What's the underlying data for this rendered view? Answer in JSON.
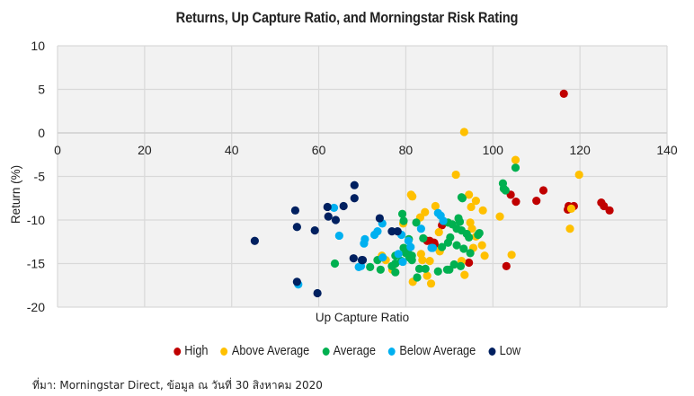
{
  "chart_data": {
    "type": "scatter",
    "title": "Returns, Up Capture Ratio, and Morningstar Risk Rating",
    "xlabel": "Up Capture Ratio",
    "ylabel": "Return (%)",
    "xlim": [
      0,
      140
    ],
    "ylim": [
      -20,
      10
    ],
    "xticks": [
      0,
      20,
      40,
      60,
      80,
      100,
      120,
      140
    ],
    "yticks": [
      10,
      5,
      0,
      -5,
      -10,
      -15,
      -20
    ],
    "grid": true,
    "legend_position": "bottom",
    "series": [
      {
        "name": "High",
        "color": "#c00000",
        "points": [
          [
            116.3,
            4.5
          ],
          [
            104.1,
            -7.1
          ],
          [
            105.3,
            -7.9
          ],
          [
            110.0,
            -7.8
          ],
          [
            111.6,
            -6.6
          ],
          [
            117.4,
            -8.4
          ],
          [
            118.6,
            -8.4
          ],
          [
            117.2,
            -8.8
          ],
          [
            124.9,
            -8.0
          ],
          [
            125.5,
            -8.4
          ],
          [
            126.8,
            -8.9
          ],
          [
            88.3,
            -10.6
          ],
          [
            85.5,
            -12.4
          ],
          [
            86.6,
            -12.8
          ],
          [
            84.9,
            -12.4
          ],
          [
            86.5,
            -12.6
          ],
          [
            94.5,
            -14.9
          ],
          [
            103.1,
            -15.3
          ]
        ]
      },
      {
        "name": "Above Average",
        "color": "#ffc000",
        "points": [
          [
            93.4,
            0.1
          ],
          [
            105.2,
            -3.1
          ],
          [
            119.8,
            -4.8
          ],
          [
            91.5,
            -4.8
          ],
          [
            94.5,
            -7.1
          ],
          [
            96.1,
            -7.8
          ],
          [
            95.0,
            -8.5
          ],
          [
            97.7,
            -8.9
          ],
          [
            86.8,
            -8.4
          ],
          [
            84.4,
            -9.1
          ],
          [
            101.6,
            -9.6
          ],
          [
            81.2,
            -7.1
          ],
          [
            81.5,
            -7.3
          ],
          [
            83.3,
            -9.7
          ],
          [
            79.4,
            -10.4
          ],
          [
            87.6,
            -11.4
          ],
          [
            87.8,
            -13.5
          ],
          [
            83.5,
            -13.9
          ],
          [
            83.8,
            -14.6
          ],
          [
            85.5,
            -14.7
          ],
          [
            74.5,
            -14.1
          ],
          [
            75.4,
            -14.6
          ],
          [
            84.9,
            -16.4
          ],
          [
            81.6,
            -17.1
          ],
          [
            85.8,
            -17.3
          ],
          [
            76.9,
            -15.7
          ],
          [
            94.8,
            -10.3
          ],
          [
            95.2,
            -11.0
          ],
          [
            96.1,
            -11.9
          ],
          [
            97.5,
            -12.9
          ],
          [
            95.5,
            -13.2
          ],
          [
            98.1,
            -14.1
          ],
          [
            104.3,
            -14.0
          ],
          [
            92.8,
            -14.7
          ],
          [
            93.5,
            -16.3
          ],
          [
            87.8,
            -13.6
          ],
          [
            118.0,
            -8.7
          ],
          [
            117.7,
            -11.0
          ]
        ]
      },
      {
        "name": "Average",
        "color": "#00b050",
        "points": [
          [
            105.2,
            -4.0
          ],
          [
            102.3,
            -5.8
          ],
          [
            102.5,
            -6.4
          ],
          [
            102.9,
            -6.6
          ],
          [
            93.0,
            -7.5
          ],
          [
            92.8,
            -7.4
          ],
          [
            92.1,
            -9.8
          ],
          [
            92.4,
            -10.2
          ],
          [
            90.7,
            -10.5
          ],
          [
            91.7,
            -11.0
          ],
          [
            92.8,
            -11.2
          ],
          [
            94.0,
            -11.6
          ],
          [
            94.5,
            -12.0
          ],
          [
            96.6,
            -11.7
          ],
          [
            96.9,
            -11.5
          ],
          [
            90.2,
            -12.0
          ],
          [
            89.7,
            -12.6
          ],
          [
            91.7,
            -12.9
          ],
          [
            93.3,
            -13.3
          ],
          [
            94.8,
            -13.8
          ],
          [
            88.3,
            -13.1
          ],
          [
            91.1,
            -15.1
          ],
          [
            92.6,
            -15.3
          ],
          [
            90.0,
            -15.7
          ],
          [
            87.4,
            -15.9
          ],
          [
            79.2,
            -9.3
          ],
          [
            79.5,
            -10.1
          ],
          [
            82.4,
            -10.3
          ],
          [
            84.0,
            -12.1
          ],
          [
            80.7,
            -12.2
          ],
          [
            80.4,
            -13.6
          ],
          [
            81.4,
            -14.1
          ],
          [
            81.4,
            -14.6
          ],
          [
            77.6,
            -14.1
          ],
          [
            77.6,
            -15.0
          ],
          [
            73.5,
            -14.6
          ],
          [
            71.8,
            -15.4
          ],
          [
            74.2,
            -15.7
          ],
          [
            76.8,
            -15.3
          ],
          [
            77.6,
            -16.0
          ],
          [
            83.1,
            -15.6
          ],
          [
            84.5,
            -15.6
          ],
          [
            82.6,
            -16.6
          ],
          [
            89.5,
            -15.7
          ],
          [
            89.7,
            -10.3
          ],
          [
            79.0,
            -14.7
          ],
          [
            63.7,
            -15.0
          ],
          [
            80.0,
            -13.8
          ],
          [
            80.8,
            -14.3
          ],
          [
            79.5,
            -13.2
          ]
        ]
      },
      {
        "name": "Below Average",
        "color": "#00b0f0",
        "points": [
          [
            63.5,
            -8.6
          ],
          [
            64.7,
            -11.8
          ],
          [
            70.6,
            -12.2
          ],
          [
            70.4,
            -12.7
          ],
          [
            69.2,
            -15.4
          ],
          [
            55.3,
            -17.4
          ],
          [
            72.8,
            -11.7
          ],
          [
            74.6,
            -10.4
          ],
          [
            73.5,
            -11.3
          ],
          [
            79.0,
            -11.7
          ],
          [
            83.5,
            -11.0
          ],
          [
            87.4,
            -9.2
          ],
          [
            88.0,
            -9.5
          ],
          [
            88.6,
            -10.1
          ],
          [
            80.6,
            -12.4
          ],
          [
            81.1,
            -13.1
          ],
          [
            85.9,
            -13.2
          ],
          [
            78.3,
            -13.9
          ],
          [
            79.3,
            -14.8
          ],
          [
            74.7,
            -14.3
          ],
          [
            69.7,
            -15.3
          ],
          [
            86.2,
            -13.2
          ]
        ]
      },
      {
        "name": "Low",
        "color": "#002060",
        "points": [
          [
            68.2,
            -6.0
          ],
          [
            68.2,
            -7.5
          ],
          [
            54.6,
            -8.9
          ],
          [
            62.0,
            -8.5
          ],
          [
            65.7,
            -8.4
          ],
          [
            62.2,
            -9.6
          ],
          [
            63.9,
            -10.0
          ],
          [
            55.0,
            -10.8
          ],
          [
            59.1,
            -11.2
          ],
          [
            45.3,
            -12.4
          ],
          [
            68.0,
            -14.4
          ],
          [
            69.9,
            -14.6
          ],
          [
            55.0,
            -17.1
          ],
          [
            59.7,
            -18.4
          ],
          [
            74.0,
            -9.8
          ],
          [
            76.8,
            -11.3
          ],
          [
            78.1,
            -11.3
          ],
          [
            70.1,
            -14.6
          ]
        ]
      }
    ]
  },
  "source_note": "ที่มา: Morningstar Direct, ข้อมูล ณ วันที่ 30 สิงหาคม 2020"
}
